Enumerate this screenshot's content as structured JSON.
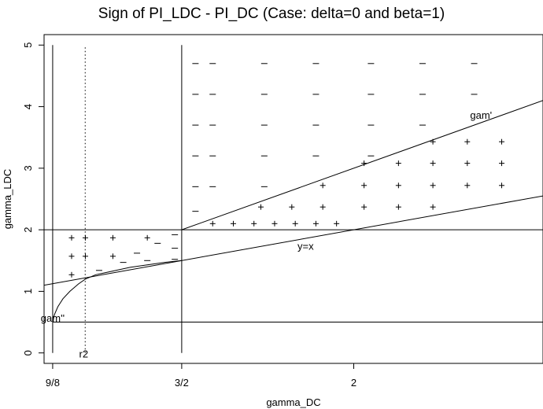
{
  "chart_data": {
    "type": "scatter",
    "title": "Sign of PI_LDC - PI_DC (Case: delta=0 and beta=1)",
    "xlabel": "gamma_DC",
    "ylabel": "gamma_LDC",
    "xlim": [
      1.1,
      2.55
    ],
    "ylim": [
      -0.17,
      5.17
    ],
    "x_ticks": [
      {
        "value": 1.125,
        "label": "9/8"
      },
      {
        "value": 1.5,
        "label": "3/2"
      },
      {
        "value": 2.0,
        "label": "2"
      }
    ],
    "y_ticks": [
      {
        "value": 0,
        "label": "0"
      },
      {
        "value": 1,
        "label": "1"
      },
      {
        "value": 2,
        "label": "2"
      },
      {
        "value": 3,
        "label": "3"
      },
      {
        "value": 4,
        "label": "4"
      },
      {
        "value": 5,
        "label": "5"
      }
    ],
    "grid": false,
    "reference_lines": {
      "vertical_solid": [
        1.125,
        1.5
      ],
      "vertical_dotted": [
        1.2195
      ],
      "horizontal": [
        0.5,
        2.0
      ],
      "diagonal_y_eq_x": true,
      "gam_prime_slope": 2.0,
      "gam_prime_intercept": -1.0
    },
    "gam_double_prime_curve": [
      [
        1.125,
        0.5
      ],
      [
        1.13,
        0.62
      ],
      [
        1.14,
        0.75
      ],
      [
        1.155,
        0.88
      ],
      [
        1.175,
        1.0
      ],
      [
        1.2,
        1.12
      ],
      [
        1.22,
        1.2
      ],
      [
        1.25,
        1.27
      ],
      [
        1.3,
        1.33
      ],
      [
        1.35,
        1.39
      ],
      [
        1.4,
        1.43
      ],
      [
        1.45,
        1.47
      ],
      [
        1.5,
        1.5
      ]
    ],
    "annotations": [
      {
        "text": "gam'",
        "x": 2.37,
        "y": 3.85
      },
      {
        "text": "y=x",
        "x": 1.86,
        "y": 1.72
      },
      {
        "text": "gam''",
        "x": 1.125,
        "y": 0.55
      },
      {
        "text": "r2",
        "x": 1.215,
        "y": -0.03
      }
    ],
    "series": [
      {
        "name": "+",
        "points": [
          [
            1.18,
            1.87
          ],
          [
            1.22,
            1.87
          ],
          [
            1.3,
            1.87
          ],
          [
            1.4,
            1.87
          ],
          [
            1.18,
            1.57
          ],
          [
            1.22,
            1.57
          ],
          [
            1.3,
            1.57
          ],
          [
            1.18,
            1.27
          ],
          [
            1.59,
            2.1
          ],
          [
            1.65,
            2.1
          ],
          [
            1.71,
            2.1
          ],
          [
            1.77,
            2.1
          ],
          [
            1.83,
            2.1
          ],
          [
            1.89,
            2.1
          ],
          [
            1.95,
            2.1
          ],
          [
            1.73,
            2.37
          ],
          [
            1.82,
            2.37
          ],
          [
            1.91,
            2.37
          ],
          [
            2.03,
            2.37
          ],
          [
            2.13,
            2.37
          ],
          [
            2.23,
            2.37
          ],
          [
            1.91,
            2.72
          ],
          [
            2.03,
            2.72
          ],
          [
            2.13,
            2.72
          ],
          [
            2.23,
            2.72
          ],
          [
            2.33,
            2.72
          ],
          [
            2.43,
            2.72
          ],
          [
            2.03,
            3.08
          ],
          [
            2.13,
            3.08
          ],
          [
            2.23,
            3.08
          ],
          [
            2.33,
            3.08
          ],
          [
            2.43,
            3.08
          ],
          [
            2.23,
            3.43
          ],
          [
            2.33,
            3.43
          ],
          [
            2.43,
            3.43
          ]
        ]
      },
      {
        "name": "-",
        "points": [
          [
            1.54,
            4.7
          ],
          [
            1.59,
            4.7
          ],
          [
            1.74,
            4.7
          ],
          [
            1.89,
            4.7
          ],
          [
            2.05,
            4.7
          ],
          [
            2.2,
            4.7
          ],
          [
            2.35,
            4.7
          ],
          [
            1.54,
            4.2
          ],
          [
            1.59,
            4.2
          ],
          [
            1.74,
            4.2
          ],
          [
            1.89,
            4.2
          ],
          [
            2.05,
            4.2
          ],
          [
            2.2,
            4.2
          ],
          [
            2.35,
            4.2
          ],
          [
            1.54,
            3.7
          ],
          [
            1.59,
            3.7
          ],
          [
            1.74,
            3.7
          ],
          [
            1.89,
            3.7
          ],
          [
            2.05,
            3.7
          ],
          [
            2.2,
            3.7
          ],
          [
            1.54,
            3.2
          ],
          [
            1.59,
            3.2
          ],
          [
            1.74,
            3.2
          ],
          [
            1.89,
            3.2
          ],
          [
            2.05,
            3.2
          ],
          [
            1.54,
            2.7
          ],
          [
            1.59,
            2.7
          ],
          [
            1.74,
            2.7
          ],
          [
            1.54,
            2.3
          ],
          [
            1.48,
            1.92
          ],
          [
            1.48,
            1.7
          ],
          [
            1.48,
            1.52
          ],
          [
            1.43,
            1.78
          ],
          [
            1.37,
            1.62
          ],
          [
            1.4,
            1.5
          ],
          [
            1.33,
            1.47
          ],
          [
            1.26,
            1.34
          ]
        ]
      }
    ]
  }
}
